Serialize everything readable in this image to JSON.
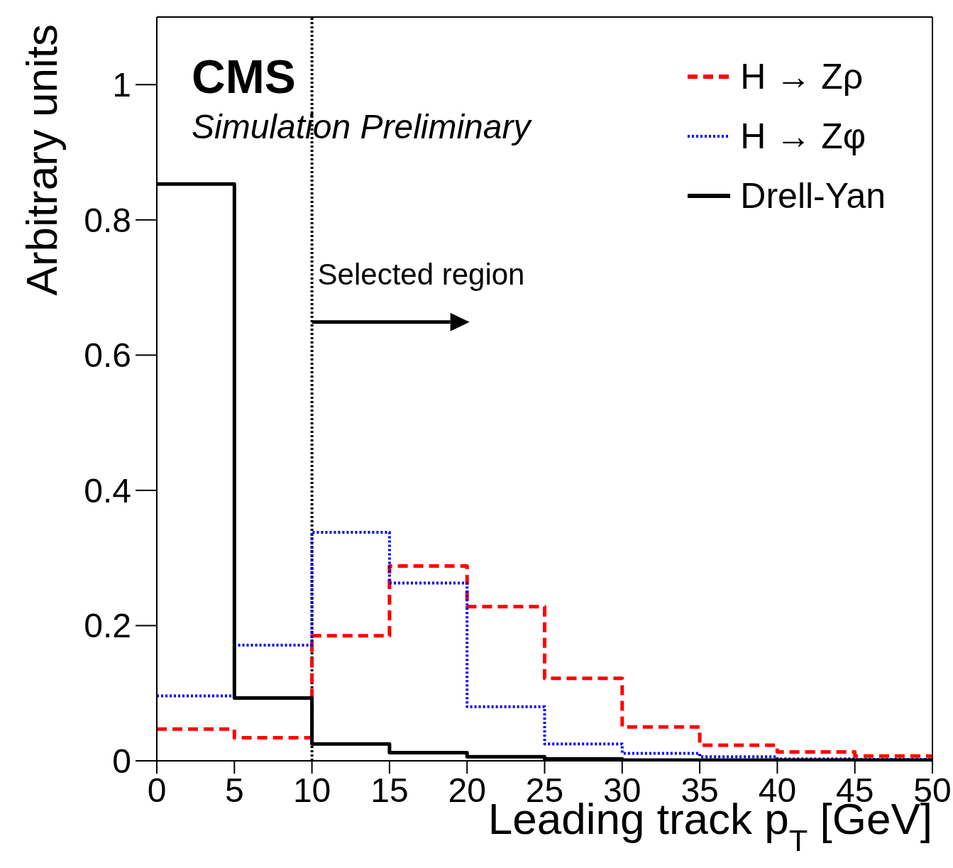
{
  "chart_data": {
    "type": "histogram",
    "annotations": [
      "CMS",
      "Simulation Preliminary"
    ],
    "xlabel": "Leading track p$_{T}$ [GeV]",
    "ylabel": "Arbitrary units",
    "bins": [
      0,
      5,
      10,
      15,
      20,
      25,
      30,
      35,
      40,
      45,
      50
    ],
    "series": [
      {
        "name": "H → Zρ",
        "color": "#ff0000",
        "line_style": "dashed",
        "values": [
          0.047,
          0.034,
          0.185,
          0.288,
          0.228,
          0.122,
          0.05,
          0.023,
          0.013,
          0.007
        ]
      },
      {
        "name": "H → Zφ",
        "color": "#0000ff",
        "line_style": "dotted",
        "values": [
          0.096,
          0.171,
          0.338,
          0.263,
          0.08,
          0.025,
          0.011,
          0.006,
          0.003,
          0.002
        ]
      },
      {
        "name": "Drell-Yan",
        "color": "#000000",
        "line_style": "solid",
        "values": [
          0.853,
          0.093,
          0.025,
          0.012,
          0.006,
          0.003,
          0.001,
          0.001,
          0.001,
          0.001
        ]
      }
    ],
    "xlim": [
      0,
      50
    ],
    "xticks": [
      0,
      5,
      10,
      15,
      20,
      25,
      30,
      35,
      40,
      45,
      50
    ],
    "ylim": [
      0,
      1.1
    ],
    "yticks": [
      0,
      {
        "value": 0.2,
        "label": "0.2"
      },
      {
        "value": 0.4,
        "label": "0.4"
      },
      {
        "value": 0.6,
        "label": "0.6"
      },
      {
        "value": 0.8,
        "label": "0.8"
      },
      1
    ],
    "ref_lines": [
      {
        "axis": "x",
        "value": 10,
        "label": "Selected region",
        "color": "#000000",
        "line_style": "dotted"
      }
    ],
    "legend": "top right",
    "grid": false
  }
}
